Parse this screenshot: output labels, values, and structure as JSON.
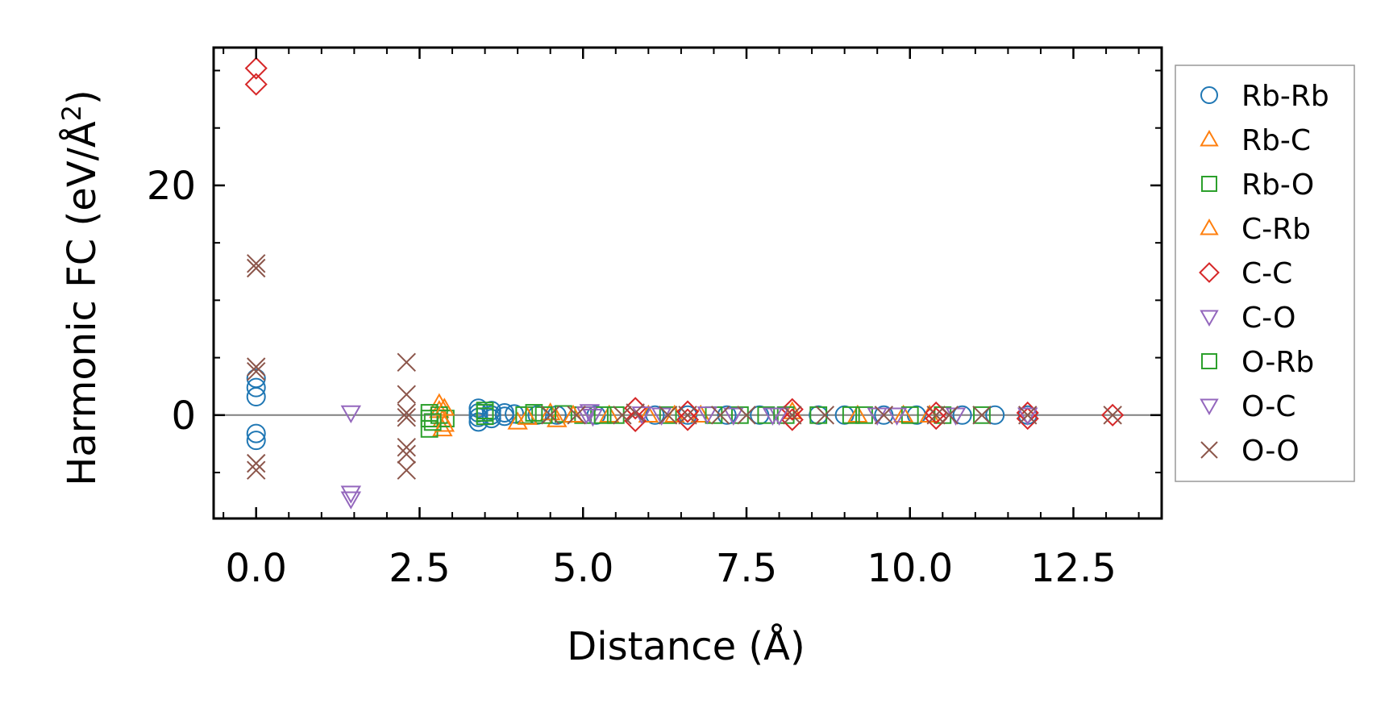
{
  "chart_data": {
    "type": "scatter",
    "title": "",
    "xlabel": "Distance (Å)",
    "ylabel": "Harmonic FC (eV/Å",
    "ylabel_sup": "2",
    "ylabel_close": ")",
    "xlim": [
      -0.65,
      13.85
    ],
    "ylim": [
      -9,
      32
    ],
    "xticks": [
      0,
      2.5,
      5,
      7.5,
      10,
      12.5
    ],
    "xtick_labels": [
      "0.0",
      "2.5",
      "5.0",
      "7.5",
      "10.0",
      "12.5"
    ],
    "yticks": [
      0,
      20
    ],
    "ytick_labels": [
      "0",
      "20"
    ],
    "x_minor_step": 0.5,
    "y_minor_step": 5,
    "legend_position": "outside-right",
    "zero_line": true,
    "series": [
      {
        "name": "Rb-Rb",
        "marker": "circle",
        "color": "#1f77b4",
        "points": [
          [
            0,
            3.2
          ],
          [
            0,
            2.4
          ],
          [
            0,
            1.6
          ],
          [
            0,
            -1.6
          ],
          [
            0,
            -2.2
          ],
          [
            3.4,
            0.6
          ],
          [
            3.4,
            0.2
          ],
          [
            3.4,
            -0.2
          ],
          [
            3.4,
            -0.6
          ],
          [
            3.6,
            0.4
          ],
          [
            3.6,
            0
          ],
          [
            3.6,
            -0.3
          ],
          [
            3.8,
            0.2
          ],
          [
            3.8,
            -0.1
          ],
          [
            3.95,
            0.1
          ],
          [
            4.3,
            0
          ],
          [
            4.6,
            0
          ],
          [
            5.2,
            0
          ],
          [
            6.1,
            0
          ],
          [
            6.6,
            0
          ],
          [
            7.2,
            0
          ],
          [
            7.7,
            0
          ],
          [
            8.6,
            0
          ],
          [
            9.0,
            0
          ],
          [
            9.6,
            0
          ],
          [
            10.1,
            0
          ],
          [
            10.8,
            0
          ],
          [
            11.3,
            0
          ],
          [
            11.8,
            0
          ]
        ]
      },
      {
        "name": "Rb-C",
        "marker": "triangle-up",
        "color": "#ff7f0e",
        "points": [
          [
            2.8,
            1.0
          ],
          [
            2.8,
            0.4
          ],
          [
            2.85,
            -0.4
          ],
          [
            2.85,
            -1.2
          ],
          [
            4.0,
            -0.6
          ],
          [
            4.5,
            0.2
          ],
          [
            4.6,
            -0.4
          ],
          [
            5.4,
            0
          ],
          [
            6.0,
            0
          ],
          [
            6.8,
            0
          ],
          [
            8.2,
            0.3
          ],
          [
            9.2,
            0
          ],
          [
            9.9,
            0
          ],
          [
            10.3,
            0
          ]
        ]
      },
      {
        "name": "Rb-O",
        "marker": "square",
        "color": "#2ca02c",
        "points": [
          [
            2.65,
            0.2
          ],
          [
            2.65,
            -0.3
          ],
          [
            2.65,
            -1.2
          ],
          [
            2.8,
            0
          ],
          [
            2.9,
            -0.3
          ],
          [
            3.5,
            0.2
          ],
          [
            3.5,
            -0.1
          ],
          [
            4.1,
            0
          ],
          [
            4.4,
            0
          ],
          [
            4.7,
            0.1
          ],
          [
            5.0,
            0
          ],
          [
            5.5,
            0
          ],
          [
            6.3,
            0
          ],
          [
            7.0,
            0
          ],
          [
            7.4,
            0
          ],
          [
            8.1,
            0
          ],
          [
            8.6,
            0
          ],
          [
            9.1,
            0
          ],
          [
            9.3,
            0
          ],
          [
            10.0,
            0
          ],
          [
            10.5,
            0
          ],
          [
            11.1,
            0
          ]
        ]
      },
      {
        "name": "C-Rb",
        "marker": "triangle-up",
        "color": "#ff7f0e",
        "points": [
          [
            2.88,
            0.6
          ],
          [
            2.88,
            -0.8
          ],
          [
            4.15,
            -0.2
          ],
          [
            4.85,
            0
          ],
          [
            6.4,
            0
          ]
        ]
      },
      {
        "name": "C-C",
        "marker": "diamond",
        "color": "#d62728",
        "points": [
          [
            0,
            30.2
          ],
          [
            0,
            28.8
          ],
          [
            5.8,
            0.6
          ],
          [
            5.8,
            -0.5
          ],
          [
            6.6,
            0.3
          ],
          [
            6.6,
            -0.4
          ],
          [
            8.2,
            0.5
          ],
          [
            8.2,
            -0.4
          ],
          [
            10.4,
            0.2
          ],
          [
            10.4,
            -0.3
          ],
          [
            11.8,
            0.2
          ],
          [
            11.8,
            -0.3
          ],
          [
            13.1,
            0
          ]
        ]
      },
      {
        "name": "C-O",
        "marker": "triangle-down",
        "color": "#9467bd",
        "points": [
          [
            1.45,
            0.2
          ],
          [
            1.45,
            -6.8
          ],
          [
            1.45,
            -7.3
          ],
          [
            5.1,
            0.3
          ],
          [
            5.15,
            -0.1
          ],
          [
            5.9,
            0.1
          ],
          [
            6.9,
            0.1
          ],
          [
            7.3,
            0
          ],
          [
            8.0,
            0
          ],
          [
            9.5,
            0
          ],
          [
            10.7,
            0
          ]
        ]
      },
      {
        "name": "O-Rb",
        "marker": "square",
        "color": "#2ca02c",
        "points": [
          [
            2.7,
            -0.6
          ],
          [
            3.5,
            0.4
          ],
          [
            4.25,
            0.2
          ],
          [
            5.3,
            0
          ],
          [
            7.8,
            0
          ]
        ]
      },
      {
        "name": "O-C",
        "marker": "triangle-down",
        "color": "#9467bd",
        "points": [
          [
            5.05,
            0.1
          ],
          [
            6.2,
            0
          ],
          [
            7.9,
            0
          ],
          [
            9.8,
            0
          ],
          [
            11.8,
            0
          ]
        ]
      },
      {
        "name": "O-O",
        "marker": "x",
        "color": "#8c564b",
        "points": [
          [
            0,
            13.2
          ],
          [
            0,
            12.8
          ],
          [
            0,
            4.2
          ],
          [
            0,
            3.8
          ],
          [
            0,
            -4.2
          ],
          [
            0,
            -4.8
          ],
          [
            2.3,
            4.6
          ],
          [
            2.3,
            1.8
          ],
          [
            2.3,
            0.2
          ],
          [
            2.3,
            -0.2
          ],
          [
            2.3,
            -2.8
          ],
          [
            2.3,
            -3.4
          ],
          [
            2.3,
            -4.8
          ],
          [
            4.5,
            0
          ],
          [
            4.9,
            0
          ],
          [
            5.6,
            0
          ],
          [
            5.8,
            0.2
          ],
          [
            6.3,
            0
          ],
          [
            6.6,
            0
          ],
          [
            7.1,
            0
          ],
          [
            7.5,
            0
          ],
          [
            8.2,
            0
          ],
          [
            8.7,
            0
          ],
          [
            9.6,
            0
          ],
          [
            10.4,
            0
          ],
          [
            10.6,
            0
          ],
          [
            11.1,
            0
          ],
          [
            11.8,
            0
          ],
          [
            13.1,
            0
          ]
        ]
      }
    ]
  }
}
